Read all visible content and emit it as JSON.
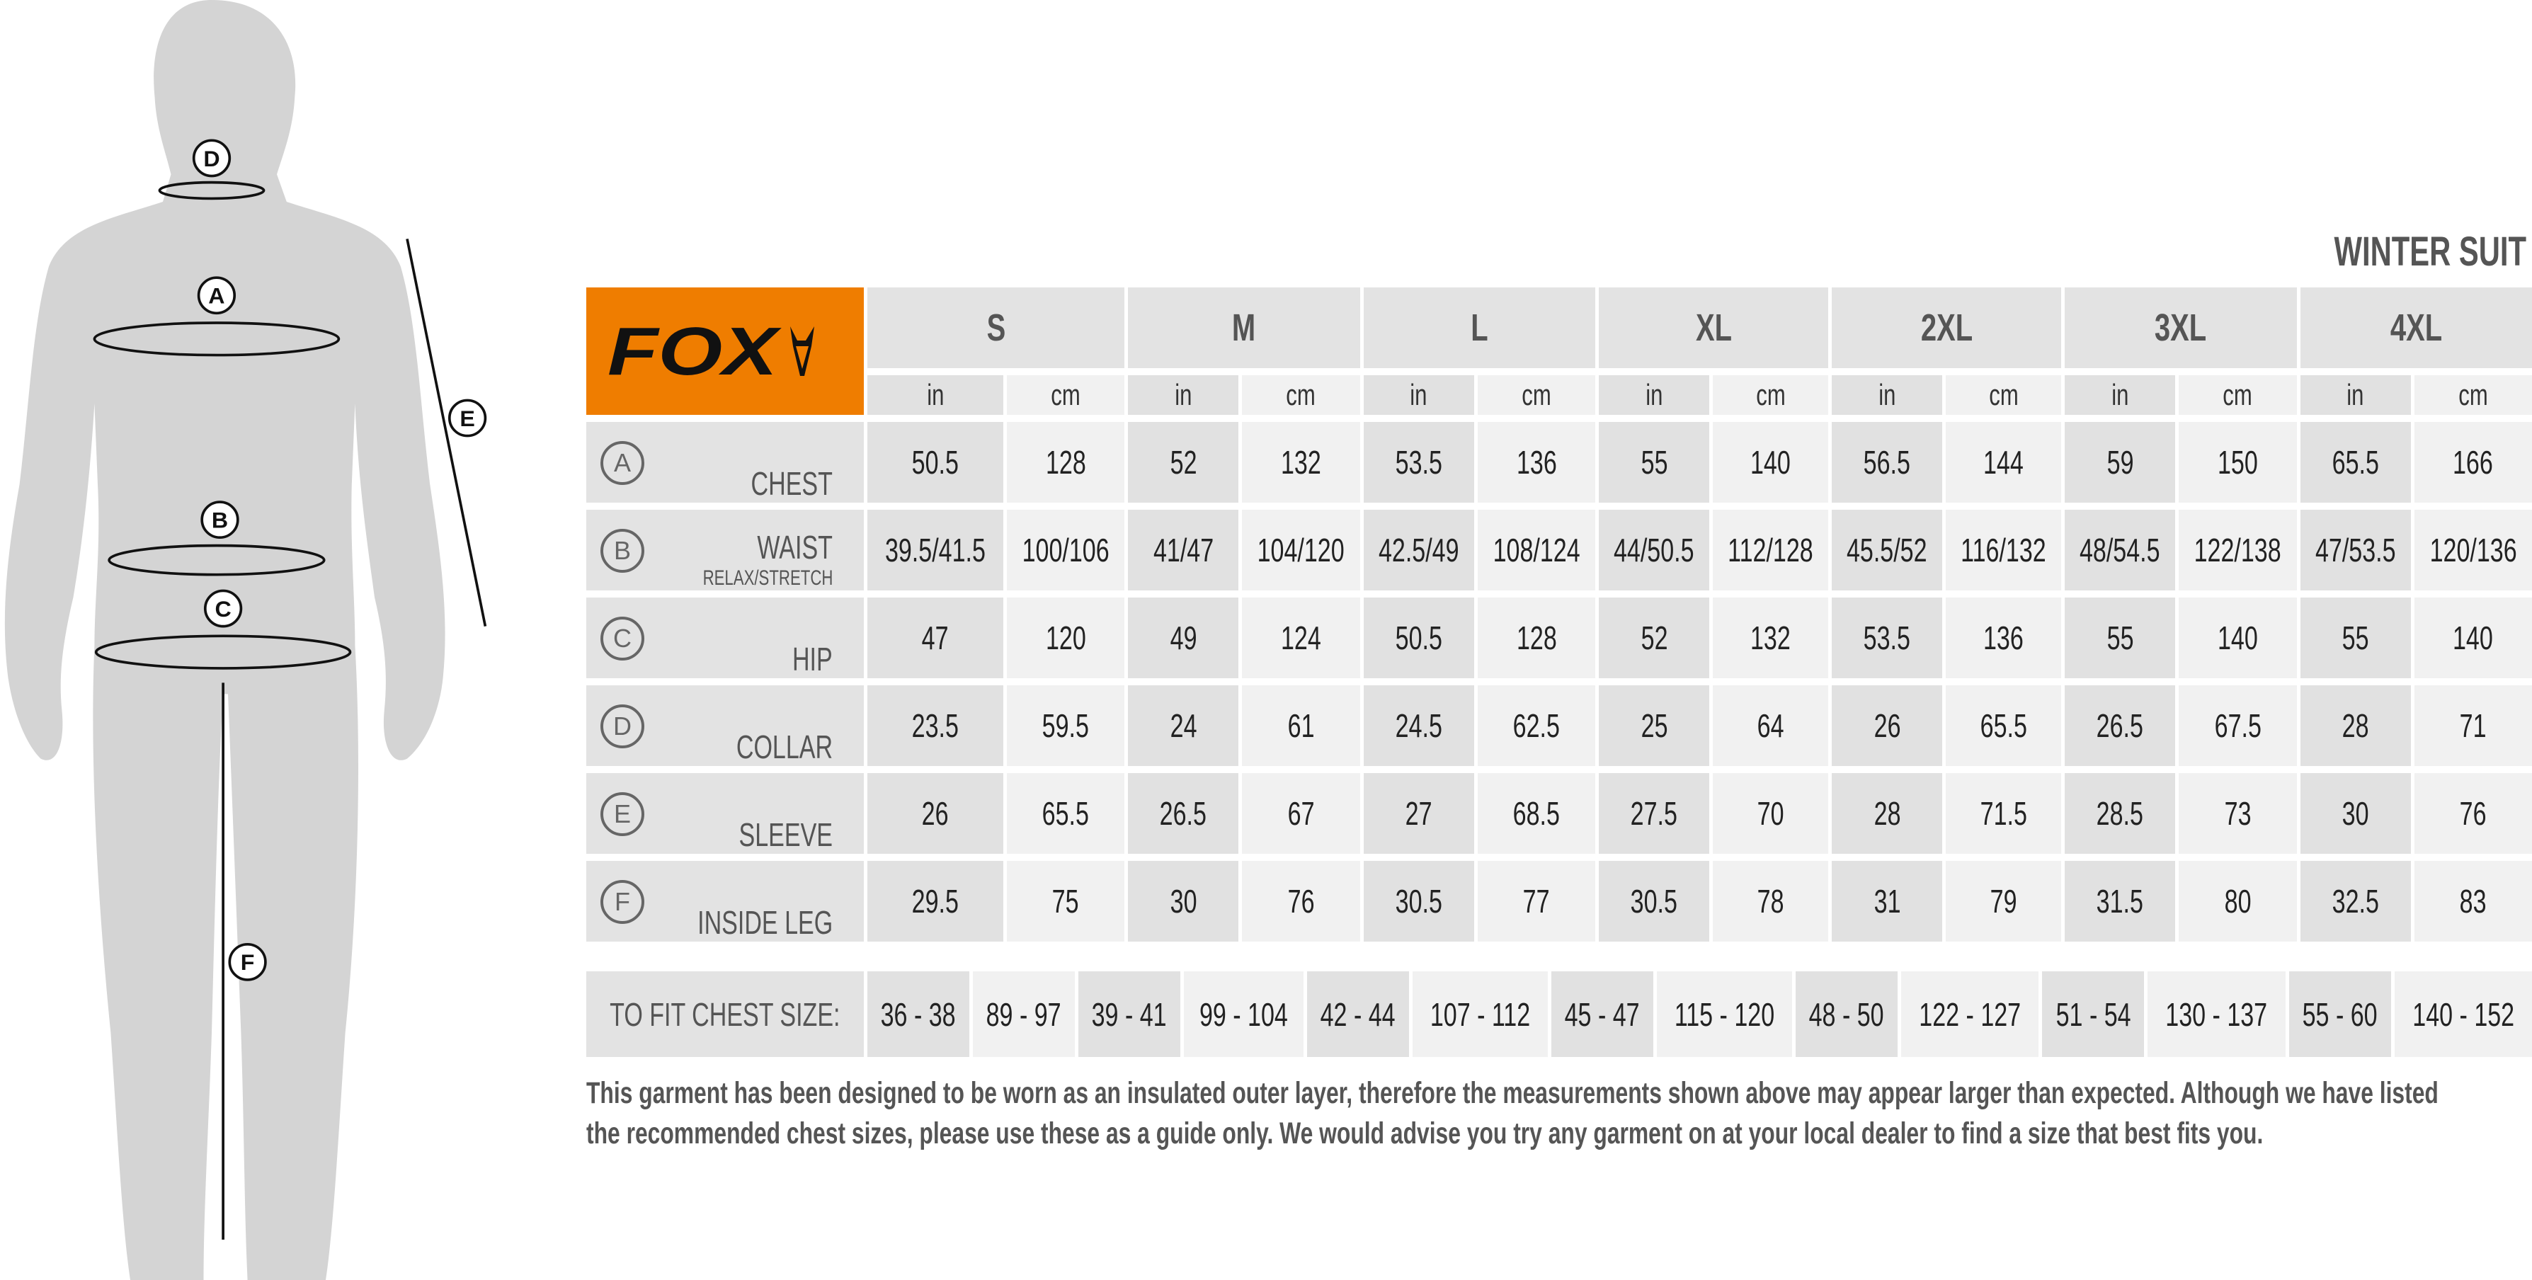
{
  "title": "WINTER SUIT",
  "brand": {
    "name": "FOX",
    "color": "#ef7d00",
    "icon": "fox-head-logo"
  },
  "sizes": [
    "S",
    "M",
    "L",
    "XL",
    "2XL",
    "3XL",
    "4XL"
  ],
  "units": [
    "in",
    "cm"
  ],
  "rows": [
    {
      "letter": "A",
      "label": "CHEST",
      "sublabel": "",
      "values": [
        [
          "50.5",
          "128"
        ],
        [
          "52",
          "132"
        ],
        [
          "53.5",
          "136"
        ],
        [
          "55",
          "140"
        ],
        [
          "56.5",
          "144"
        ],
        [
          "59",
          "150"
        ],
        [
          "65.5",
          "166"
        ]
      ]
    },
    {
      "letter": "B",
      "label": "WAIST",
      "sublabel": "RELAX/STRETCH",
      "values": [
        [
          "39.5/41.5",
          "100/106"
        ],
        [
          "41/47",
          "104/120"
        ],
        [
          "42.5/49",
          "108/124"
        ],
        [
          "44/50.5",
          "112/128"
        ],
        [
          "45.5/52",
          "116/132"
        ],
        [
          "48/54.5",
          "122/138"
        ],
        [
          "47/53.5",
          "120/136"
        ]
      ]
    },
    {
      "letter": "C",
      "label": "HIP",
      "sublabel": "",
      "values": [
        [
          "47",
          "120"
        ],
        [
          "49",
          "124"
        ],
        [
          "50.5",
          "128"
        ],
        [
          "52",
          "132"
        ],
        [
          "53.5",
          "136"
        ],
        [
          "55",
          "140"
        ],
        [
          "55",
          "140"
        ]
      ]
    },
    {
      "letter": "D",
      "label": "COLLAR",
      "sublabel": "",
      "values": [
        [
          "23.5",
          "59.5"
        ],
        [
          "24",
          "61"
        ],
        [
          "24.5",
          "62.5"
        ],
        [
          "25",
          "64"
        ],
        [
          "26",
          "65.5"
        ],
        [
          "26.5",
          "67.5"
        ],
        [
          "28",
          "71"
        ]
      ]
    },
    {
      "letter": "E",
      "label": "SLEEVE",
      "sublabel": "",
      "values": [
        [
          "26",
          "65.5"
        ],
        [
          "26.5",
          "67"
        ],
        [
          "27",
          "68.5"
        ],
        [
          "27.5",
          "70"
        ],
        [
          "28",
          "71.5"
        ],
        [
          "28.5",
          "73"
        ],
        [
          "30",
          "76"
        ]
      ]
    },
    {
      "letter": "F",
      "label": "INSIDE LEG",
      "sublabel": "",
      "values": [
        [
          "29.5",
          "75"
        ],
        [
          "30",
          "76"
        ],
        [
          "30.5",
          "77"
        ],
        [
          "30.5",
          "78"
        ],
        [
          "31",
          "79"
        ],
        [
          "31.5",
          "80"
        ],
        [
          "32.5",
          "83"
        ]
      ]
    }
  ],
  "fit": {
    "label": "TO FIT CHEST SIZE:",
    "values": [
      [
        "36 - 38",
        "89 - 97"
      ],
      [
        "39 - 41",
        "99 - 104"
      ],
      [
        "42 - 44",
        "107 - 112"
      ],
      [
        "45 - 47",
        "115 - 120"
      ],
      [
        "48 - 50",
        "122 - 127"
      ],
      [
        "51 - 54",
        "130 - 137"
      ],
      [
        "55 - 60",
        "140 - 152"
      ]
    ]
  },
  "note": [
    "This garment has been designed to be worn as an insulated outer layer, therefore the measurements shown above may appear larger than expected. Although we have listed",
    "the recommended chest sizes, please use these as a guide only. We would advise you try any garment on at your local dealer to find a size that best fits you."
  ],
  "figure": {
    "markers": [
      "A",
      "B",
      "C",
      "D",
      "E",
      "F"
    ],
    "body_color": "#d4d4d4"
  }
}
